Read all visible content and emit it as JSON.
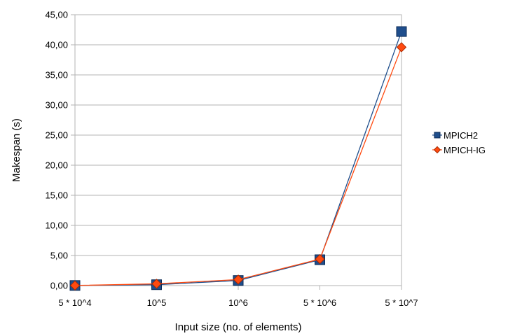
{
  "chart_data": {
    "type": "line",
    "title": "",
    "xlabel": "Input size (no. of elements)",
    "ylabel": "Makespan (s)",
    "categories": [
      "5 * 10^4",
      "10^5",
      "10^6",
      "5 * 10^6",
      "5 * 10^7"
    ],
    "yticks": [
      "0,00",
      "5,00",
      "10,00",
      "15,00",
      "20,00",
      "25,00",
      "30,00",
      "35,00",
      "40,00",
      "45,00"
    ],
    "ylim": [
      0,
      45
    ],
    "grid": "horizontal",
    "legend_position": "right",
    "series": [
      {
        "name": "MPICH2",
        "color": "#1f4e8c",
        "marker": "square",
        "values": [
          0.02,
          0.15,
          0.85,
          4.3,
          42.2
        ]
      },
      {
        "name": "MPICH-IG",
        "color": "#ff4a10",
        "marker": "diamond",
        "values": [
          0.02,
          0.3,
          1.0,
          4.4,
          39.6
        ]
      }
    ]
  }
}
